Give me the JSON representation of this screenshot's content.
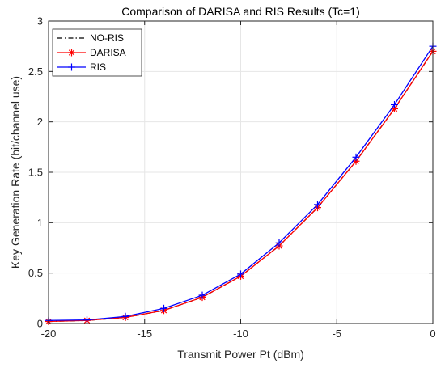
{
  "chart_data": {
    "type": "line",
    "title": "Comparison of DARISA and RIS Results (Tc=1)",
    "xlabel": "Transmit Power Pt (dBm)",
    "ylabel": "Key Generation Rate (bit/channel use)",
    "xlim": [
      -20,
      0
    ],
    "ylim": [
      0,
      3
    ],
    "xticks": [
      -20,
      -15,
      -10,
      -5,
      0
    ],
    "xtick_labels": [
      "-20",
      "-15",
      "-10",
      "-5",
      "0"
    ],
    "yticks": [
      0,
      0.5,
      1,
      1.5,
      2,
      2.5,
      3
    ],
    "ytick_labels": [
      "0",
      "0.5",
      "1",
      "1.5",
      "2",
      "2.5",
      "3"
    ],
    "grid": true,
    "legend_position": "top-left",
    "x": [
      -20,
      -18,
      -16,
      -14,
      -12,
      -10,
      -8,
      -6,
      -4,
      -2,
      0
    ],
    "series": [
      {
        "name": "NO-RIS",
        "color": "#000000",
        "line_style": "dash-dot",
        "marker": "none",
        "values": [
          0.02,
          0.03,
          0.06,
          0.13,
          0.26,
          0.47,
          0.77,
          1.15,
          1.61,
          2.13,
          2.7
        ]
      },
      {
        "name": "DARISA",
        "color": "#ff0000",
        "line_style": "solid",
        "marker": "asterisk",
        "values": [
          0.02,
          0.03,
          0.06,
          0.13,
          0.26,
          0.47,
          0.77,
          1.15,
          1.61,
          2.13,
          2.7
        ]
      },
      {
        "name": "RIS",
        "color": "#0000ff",
        "line_style": "solid",
        "marker": "plus",
        "values": [
          0.03,
          0.035,
          0.07,
          0.15,
          0.28,
          0.49,
          0.8,
          1.18,
          1.65,
          2.17,
          2.75
        ]
      }
    ]
  }
}
